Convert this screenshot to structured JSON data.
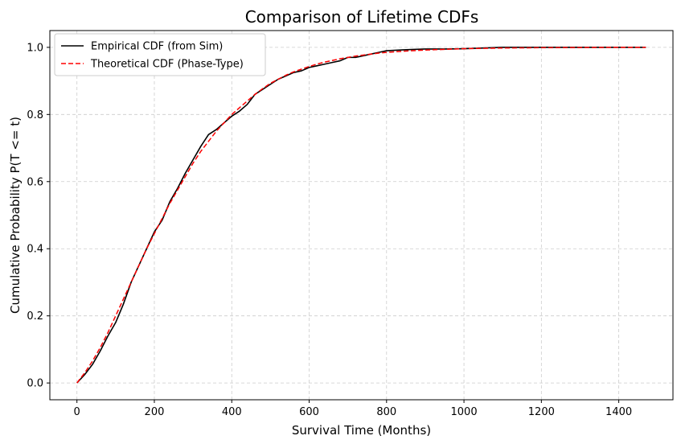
{
  "chart_data": {
    "type": "line",
    "title": "Comparison of Lifetime CDFs",
    "xlabel": "Survival Time (Months)",
    "ylabel": "Cumulative Probability P(T <= t)",
    "xlim": [
      -70,
      1540
    ],
    "ylim": [
      -0.05,
      1.05
    ],
    "xticks": [
      0,
      200,
      400,
      600,
      800,
      1000,
      1200,
      1400
    ],
    "yticks": [
      0.0,
      0.2,
      0.4,
      0.6,
      0.8,
      1.0
    ],
    "xtick_labels": [
      "0",
      "200",
      "400",
      "600",
      "800",
      "1000",
      "1200",
      "1400"
    ],
    "ytick_labels": [
      "0.0",
      "0.2",
      "0.4",
      "0.6",
      "0.8",
      "1.0"
    ],
    "grid": true,
    "legend_position": "top-left",
    "series": [
      {
        "name": "Empirical CDF (from Sim)",
        "color": "#000000",
        "style": "solid",
        "x": [
          0,
          20,
          40,
          60,
          80,
          100,
          120,
          140,
          160,
          180,
          200,
          220,
          240,
          260,
          280,
          300,
          320,
          340,
          360,
          380,
          400,
          420,
          440,
          460,
          480,
          500,
          520,
          540,
          560,
          580,
          600,
          620,
          640,
          660,
          680,
          700,
          720,
          740,
          760,
          780,
          800,
          850,
          900,
          950,
          1000,
          1050,
          1100,
          1200,
          1300,
          1400,
          1470
        ],
        "y": [
          0.0,
          0.025,
          0.055,
          0.095,
          0.14,
          0.18,
          0.235,
          0.3,
          0.35,
          0.4,
          0.45,
          0.485,
          0.54,
          0.58,
          0.625,
          0.665,
          0.705,
          0.74,
          0.755,
          0.775,
          0.795,
          0.81,
          0.83,
          0.86,
          0.875,
          0.89,
          0.905,
          0.915,
          0.925,
          0.93,
          0.94,
          0.945,
          0.95,
          0.955,
          0.96,
          0.97,
          0.97,
          0.975,
          0.98,
          0.985,
          0.99,
          0.993,
          0.995,
          0.995,
          0.996,
          0.998,
          1.0,
          1.0,
          1.0,
          1.0,
          1.0
        ]
      },
      {
        "name": "Theoretical CDF (Phase-Type)",
        "color": "#ff0000",
        "style": "dashed",
        "x": [
          0,
          20,
          40,
          60,
          80,
          100,
          120,
          140,
          160,
          180,
          200,
          220,
          240,
          260,
          280,
          300,
          320,
          340,
          360,
          380,
          400,
          420,
          440,
          460,
          480,
          500,
          520,
          540,
          560,
          580,
          600,
          620,
          640,
          660,
          680,
          700,
          720,
          740,
          760,
          780,
          800,
          850,
          900,
          950,
          1000,
          1050,
          1100,
          1200,
          1300,
          1400,
          1470
        ],
        "y": [
          0.0,
          0.03,
          0.065,
          0.105,
          0.15,
          0.2,
          0.25,
          0.3,
          0.35,
          0.4,
          0.445,
          0.49,
          0.535,
          0.575,
          0.615,
          0.655,
          0.69,
          0.72,
          0.75,
          0.775,
          0.8,
          0.82,
          0.84,
          0.86,
          0.877,
          0.893,
          0.905,
          0.917,
          0.927,
          0.935,
          0.943,
          0.95,
          0.956,
          0.961,
          0.966,
          0.97,
          0.974,
          0.977,
          0.98,
          0.983,
          0.985,
          0.989,
          0.992,
          0.994,
          0.996,
          0.997,
          0.998,
          0.999,
          0.9995,
          1.0,
          1.0
        ]
      }
    ]
  }
}
